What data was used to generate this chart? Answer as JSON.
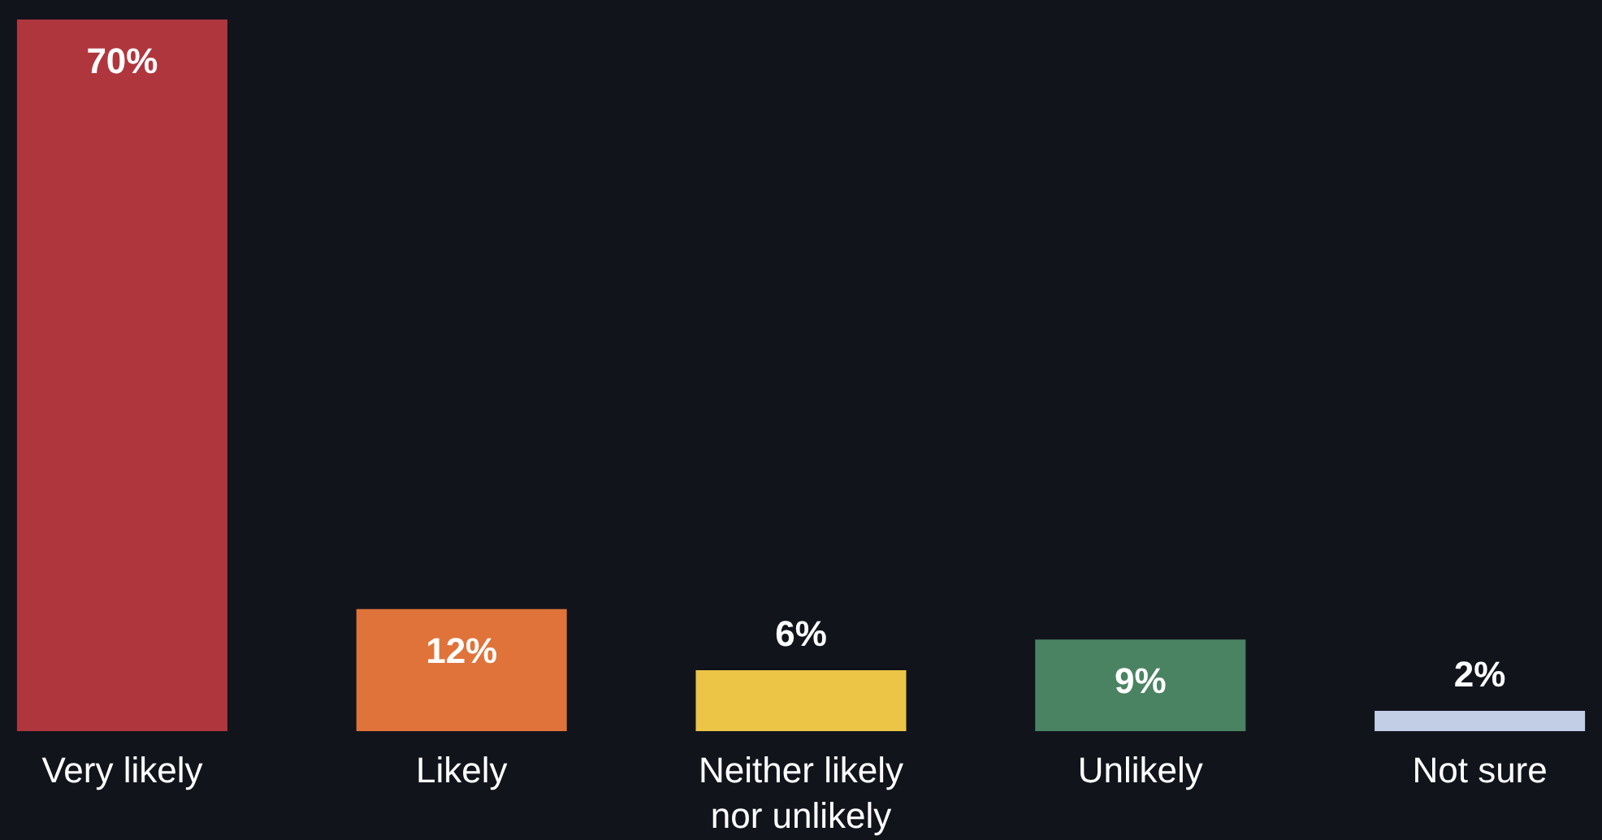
{
  "chart_data": {
    "type": "bar",
    "categories": [
      "Very likely",
      "Likely",
      "Neither likely nor unlikely",
      "Unlikely",
      "Not sure"
    ],
    "values": [
      70,
      12,
      6,
      9,
      2
    ],
    "colors": [
      "#b0363d",
      "#e07339",
      "#ecc547",
      "#4a8362",
      "#c2cde6"
    ],
    "value_labels": [
      "70%",
      "12%",
      "6%",
      "9%",
      "2%"
    ],
    "grid": false,
    "legend": false
  }
}
